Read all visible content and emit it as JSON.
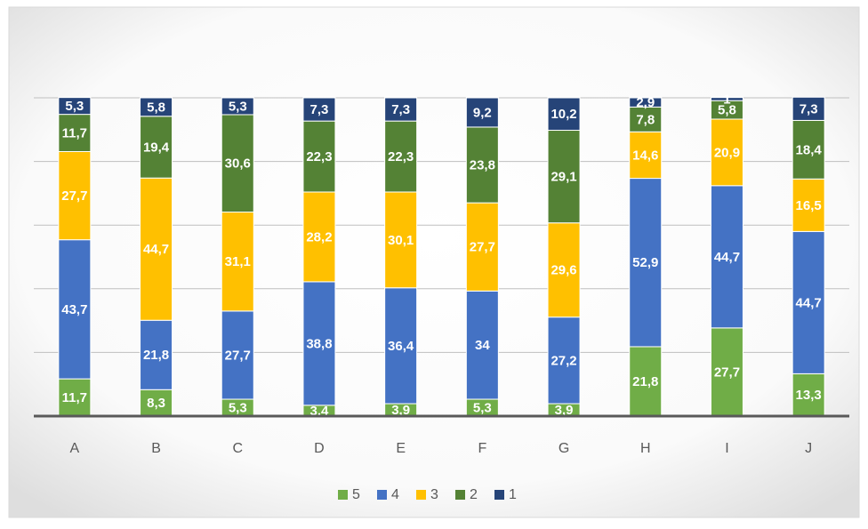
{
  "chart_data": {
    "type": "stacked_bar",
    "categories": [
      "A",
      "B",
      "C",
      "D",
      "E",
      "F",
      "G",
      "H",
      "I",
      "J"
    ],
    "series": [
      {
        "name": "5",
        "color": "#70ad47",
        "values": [
          11.7,
          8.3,
          5.3,
          3.4,
          3.9,
          5.3,
          3.9,
          21.8,
          27.7,
          13.3
        ],
        "value_labels": [
          "11,7",
          "8,3",
          "5,3",
          "3,4",
          "3,9",
          "5,3",
          "3,9",
          "21,8",
          "27,7",
          "13,3"
        ]
      },
      {
        "name": "4",
        "color": "#4472c4",
        "values": [
          43.7,
          21.8,
          27.7,
          38.8,
          36.4,
          34,
          27.2,
          52.9,
          44.7,
          44.7
        ],
        "value_labels": [
          "43,7",
          "21,8",
          "27,7",
          "38,8",
          "36,4",
          "34",
          "27,2",
          "52,9",
          "44,7",
          "44,7"
        ]
      },
      {
        "name": "3",
        "color": "#ffc000",
        "values": [
          27.7,
          44.7,
          31.1,
          28.2,
          30.1,
          27.7,
          29.6,
          14.6,
          20.9,
          16.5
        ],
        "value_labels": [
          "27,7",
          "44,7",
          "31,1",
          "28,2",
          "30,1",
          "27,7",
          "29,6",
          "14,6",
          "20,9",
          "16,5"
        ]
      },
      {
        "name": "2",
        "color": "#548235",
        "values": [
          11.7,
          19.4,
          30.6,
          22.3,
          22.3,
          23.8,
          29.1,
          7.8,
          5.8,
          18.4
        ],
        "value_labels": [
          "11,7",
          "19,4",
          "30,6",
          "22,3",
          "22,3",
          "23,8",
          "29,1",
          "7,8",
          "5,8",
          "18,4"
        ]
      },
      {
        "name": "1",
        "color": "#264478",
        "values": [
          5.3,
          5.8,
          5.3,
          7.3,
          7.3,
          9.2,
          10.2,
          2.9,
          1,
          7.3
        ],
        "value_labels": [
          "5,3",
          "5,8",
          "5,3",
          "7,3",
          "7,3",
          "9,2",
          "10,2",
          "2,9",
          "1",
          "7,3"
        ]
      }
    ],
    "ylim": [
      0,
      100
    ],
    "yticks": [
      0,
      20,
      40,
      60,
      80,
      100
    ],
    "grid": true,
    "legend": "bottom"
  }
}
